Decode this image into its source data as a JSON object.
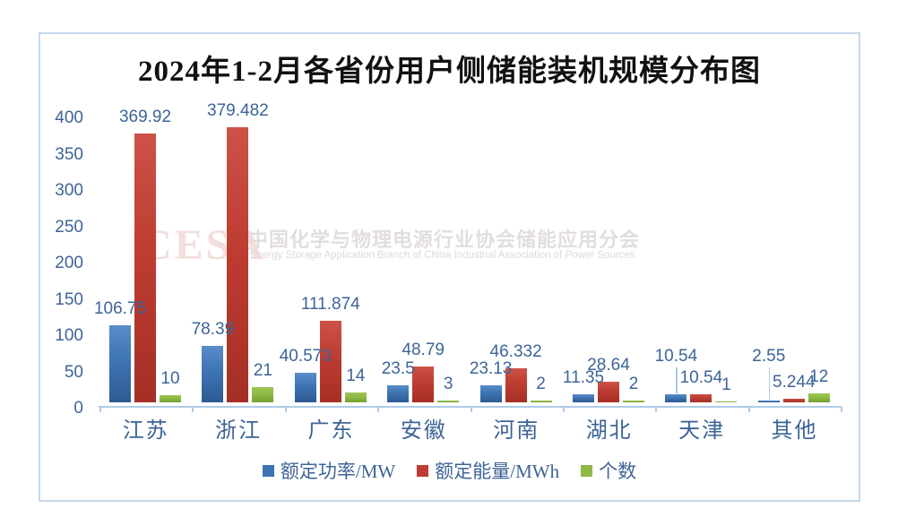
{
  "title": "2024年1-2月各省份用户侧储能装机规模分布图",
  "watermark": {
    "logo": "CESA",
    "line_cn": "中国化学与物理电源行业协会储能应用分会",
    "line_en": "Energy Storage Application Branch of China Industrial Association of Power Sources"
  },
  "colors": {
    "frame_border": "#C5D9EC",
    "axis": "#ADCBE8",
    "text_blue": "#3D6497",
    "watermark_pink": "#F2DEDB",
    "watermark_gray": "#E2DEDD",
    "background": "#FFFFFF"
  },
  "chart_data": {
    "type": "bar",
    "title": "2024年1-2月各省份用户侧储能装机规模分布图",
    "categories": [
      "江苏",
      "浙江",
      "广东",
      "安徽",
      "河南",
      "湖北",
      "天津",
      "其他"
    ],
    "category_keys": [
      "jiangsu",
      "zhejiang",
      "guangdong",
      "anhui",
      "henan",
      "hubei",
      "tianjin",
      "other"
    ],
    "series": [
      {
        "key": "rated-power",
        "name": "额定功率/MW",
        "color": "#3E74B4",
        "color_light": "#5A8CC9",
        "color_dark": "#2E5A92",
        "values": [
          106.75,
          78.39,
          40.573,
          23.5,
          23.13,
          11.35,
          10.54,
          2.55
        ],
        "labels": [
          "106.75",
          "78.39",
          "40.573",
          "23.5",
          "23.13",
          "11.35",
          "10.54",
          "2.55"
        ]
      },
      {
        "key": "rated-energy",
        "name": "额定能量/MWh",
        "color": "#BE3C31",
        "color_light": "#CC5247",
        "color_dark": "#A52F25",
        "values": [
          369.92,
          379.482,
          111.874,
          48.79,
          46.332,
          28.64,
          10.54,
          5.244
        ],
        "labels": [
          "369.92",
          "379.482",
          "111.874",
          "48.79",
          "46.332",
          "28.64",
          "10.54",
          "5.244"
        ]
      },
      {
        "key": "count",
        "name": "个数",
        "color": "#8FBA44",
        "color_light": "#9DC455",
        "color_dark": "#76A033",
        "values": [
          10,
          21,
          14,
          3,
          2,
          2,
          1,
          12
        ],
        "labels": [
          "10",
          "21",
          "14",
          "3",
          "2",
          "2",
          "1",
          "12"
        ]
      }
    ],
    "ylim": [
      0,
      400
    ],
    "yticks": [
      0,
      50,
      100,
      150,
      200,
      250,
      300,
      350,
      400
    ],
    "grid": false,
    "legend_position": "bottom",
    "callouts": [
      {
        "series": 0,
        "category": 6
      },
      {
        "series": 0,
        "category": 7
      }
    ]
  }
}
